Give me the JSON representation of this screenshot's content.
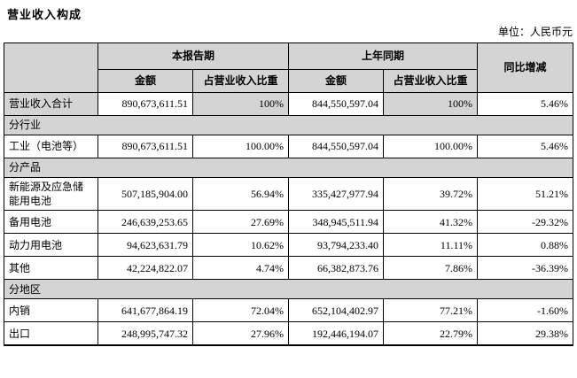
{
  "page": {
    "title": "营业收入构成",
    "unit_label": "单位：人民币元"
  },
  "table": {
    "header": {
      "corner": "",
      "current_period": "本报告期",
      "prior_period": "上年同期",
      "yoy_change": "同比增减",
      "amount": "金额",
      "proportion": "占营业收入比重"
    },
    "rows": [
      {
        "type": "data",
        "shaded": true,
        "label": "营业收入合计",
        "cur_amount": "890,673,611.51",
        "cur_pct": "100%",
        "prev_amount": "844,550,597.04",
        "prev_pct": "100%",
        "yoy": "5.46%"
      },
      {
        "type": "section",
        "label": "分行业"
      },
      {
        "type": "data",
        "label": "工业（电池等）",
        "cur_amount": "890,673,611.51",
        "cur_pct": "100.00%",
        "prev_amount": "844,550,597.04",
        "prev_pct": "100.00%",
        "yoy": "5.46%"
      },
      {
        "type": "section",
        "label": "分产品"
      },
      {
        "type": "data",
        "label": "新能源及应急储能用电池",
        "cur_amount": "507,185,904.00",
        "cur_pct": "56.94%",
        "prev_amount": "335,427,977.94",
        "prev_pct": "39.72%",
        "yoy": "51.21%"
      },
      {
        "type": "data",
        "label": "备用电池",
        "cur_amount": "246,639,253.65",
        "cur_pct": "27.69%",
        "prev_amount": "348,945,511.94",
        "prev_pct": "41.32%",
        "yoy": "-29.32%"
      },
      {
        "type": "data",
        "label": "动力用电池",
        "cur_amount": "94,623,631.79",
        "cur_pct": "10.62%",
        "prev_amount": "93,794,233.40",
        "prev_pct": "11.11%",
        "yoy": "0.88%"
      },
      {
        "type": "data",
        "label": "其他",
        "cur_amount": "42,224,822.07",
        "cur_pct": "4.74%",
        "prev_amount": "66,382,873.76",
        "prev_pct": "7.86%",
        "yoy": "-36.39%"
      },
      {
        "type": "section",
        "label": "分地区"
      },
      {
        "type": "data",
        "label": "内销",
        "cur_amount": "641,677,864.19",
        "cur_pct": "72.04%",
        "prev_amount": "652,104,402.97",
        "prev_pct": "77.21%",
        "yoy": "-1.60%"
      },
      {
        "type": "data",
        "label": "出口",
        "cur_amount": "248,995,747.32",
        "cur_pct": "27.96%",
        "prev_amount": "192,446,194.07",
        "prev_pct": "22.79%",
        "yoy": "29.38%"
      }
    ]
  },
  "colors": {
    "background": "#ffffff",
    "text": "#000000",
    "border": "#000000",
    "shade": "#d4d4d4"
  }
}
